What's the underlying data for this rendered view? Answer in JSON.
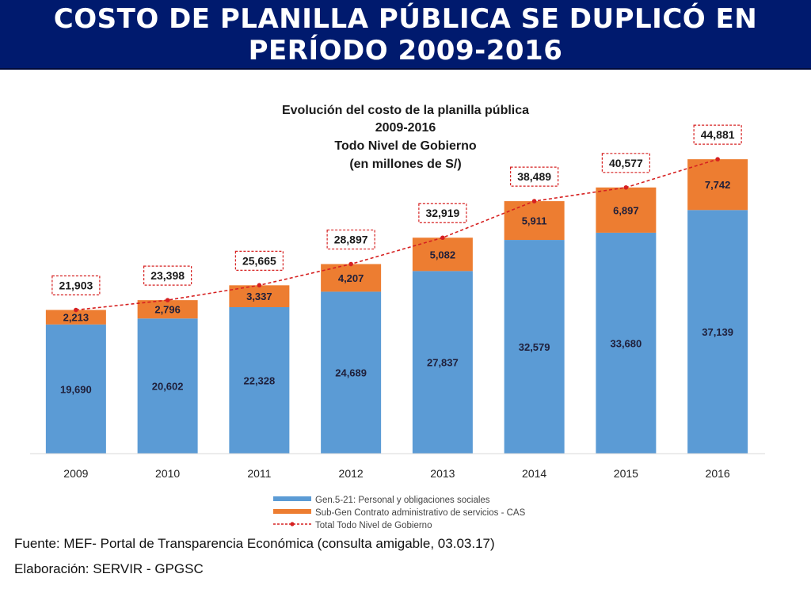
{
  "banner": {
    "title_line1": "COSTO DE PLANILLA PÚBLICA SE DUPLICÓ EN",
    "title_line2": "PERÍODO 2009-2016",
    "background_color": "#001a6e"
  },
  "chart_data": {
    "type": "bar",
    "stacked": true,
    "title_lines": [
      "Evolución  del costo de la planilla  pública",
      "2009-2016",
      "Todo Nivel de Gobierno",
      "(en millones de S/)"
    ],
    "categories": [
      "2009",
      "2010",
      "2011",
      "2012",
      "2013",
      "2014",
      "2015",
      "2016"
    ],
    "series": [
      {
        "name": "Gen.5-21: Personal y obligaciones sociales",
        "color": "#5b9bd5",
        "values": [
          19690,
          20602,
          22328,
          24689,
          27837,
          32579,
          33680,
          37139
        ],
        "labels": [
          "19,690",
          "20,602",
          "22,328",
          "24,689",
          "27,837",
          "32,579",
          "33,680",
          "37,139"
        ]
      },
      {
        "name": "Sub-Gen Contrato administrativo de servicios - CAS",
        "color": "#ed7d31",
        "values": [
          2213,
          2796,
          3337,
          4207,
          5082,
          5911,
          6897,
          7742
        ],
        "labels": [
          "2,213",
          "2,796",
          "3,337",
          "4,207",
          "5,082",
          "5,911",
          "6,897",
          "7,742"
        ]
      }
    ],
    "total_line": {
      "name": "Total Todo Nivel de Gobierno",
      "color": "#d62020",
      "style": "dashed",
      "values": [
        21903,
        23398,
        25665,
        28897,
        32919,
        38489,
        40577,
        44881
      ],
      "labels": [
        "21,903",
        "23,398",
        "25,665",
        "28,897",
        "32,919",
        "38,489",
        "40,577",
        "44,881"
      ]
    },
    "ylim": [
      0,
      48000
    ],
    "grid": false,
    "legend_position": "bottom-center"
  },
  "footer": {
    "source": "Fuente: MEF- Portal de Transparencia Económica (consulta amigable, 03.03.17)",
    "author": "Elaboración: SERVIR - GPGSC"
  }
}
